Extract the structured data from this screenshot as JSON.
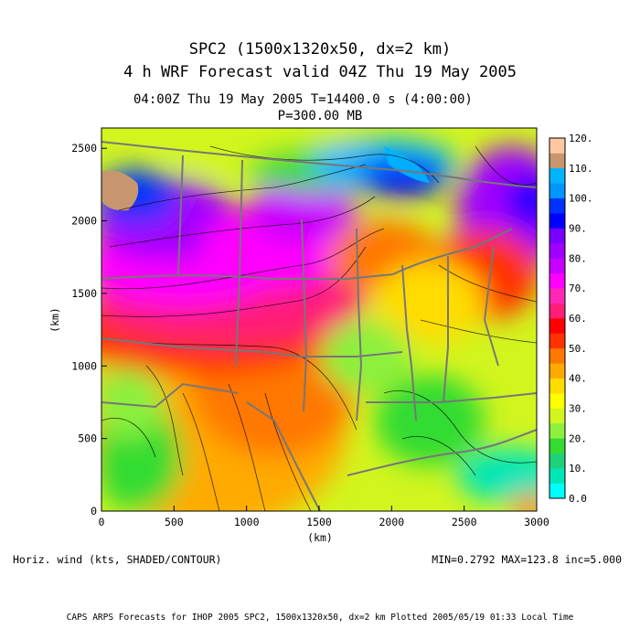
{
  "header": {
    "title_line1": "SPC2 (1500x1320x50, dx=2 km)",
    "title_line2": "4 h  WRF Forecast valid 04Z Thu 19 May 2005",
    "subtitle_time": "04:00Z Thu 19 May 2005     T=14400.0 s (4:00:00)",
    "subtitle_level": "P=300.00 MB"
  },
  "map": {
    "x_axis": {
      "label": "(km)",
      "range": [
        0,
        3000
      ],
      "ticks": [
        "0",
        "500",
        "1000",
        "1500",
        "2000",
        "2500",
        "3000"
      ]
    },
    "y_axis": {
      "label": "(km)",
      "range": [
        0,
        2640
      ],
      "ticks": [
        "0",
        "500",
        "1000",
        "1500",
        "2000",
        "2500"
      ]
    },
    "colorbar": {
      "labels": [
        "0.0",
        "10.",
        "20.",
        "30.",
        "40.",
        "50.",
        "60.",
        "70.",
        "80.",
        "90.",
        "100.",
        "110.",
        "120."
      ],
      "colors": [
        "#00ffff",
        "#00e6b8",
        "#1ed27a",
        "#32dc32",
        "#8cf03c",
        "#d2f51e",
        "#ffff00",
        "#ffdc00",
        "#ffaa00",
        "#ff7800",
        "#ff3200",
        "#ff0000",
        "#ff1e78",
        "#ff28b4",
        "#ff00ff",
        "#c800ff",
        "#a000ff",
        "#7800ff",
        "#0000ff",
        "#0032ff",
        "#0096ff",
        "#00b4ff",
        "#c8966e",
        "#ffc8a0"
      ]
    }
  },
  "footer": {
    "field_label": "Horiz. wind (kts, SHADED/CONTOUR)",
    "stats": "MIN=0.2792 MAX=123.8 inc=5.000",
    "credit": "CAPS ARPS Forecasts for IHOP 2005  SPC2, 1500x1320x50, dx=2 km  Plotted 2005/05/19 01:33 Local Time"
  }
}
